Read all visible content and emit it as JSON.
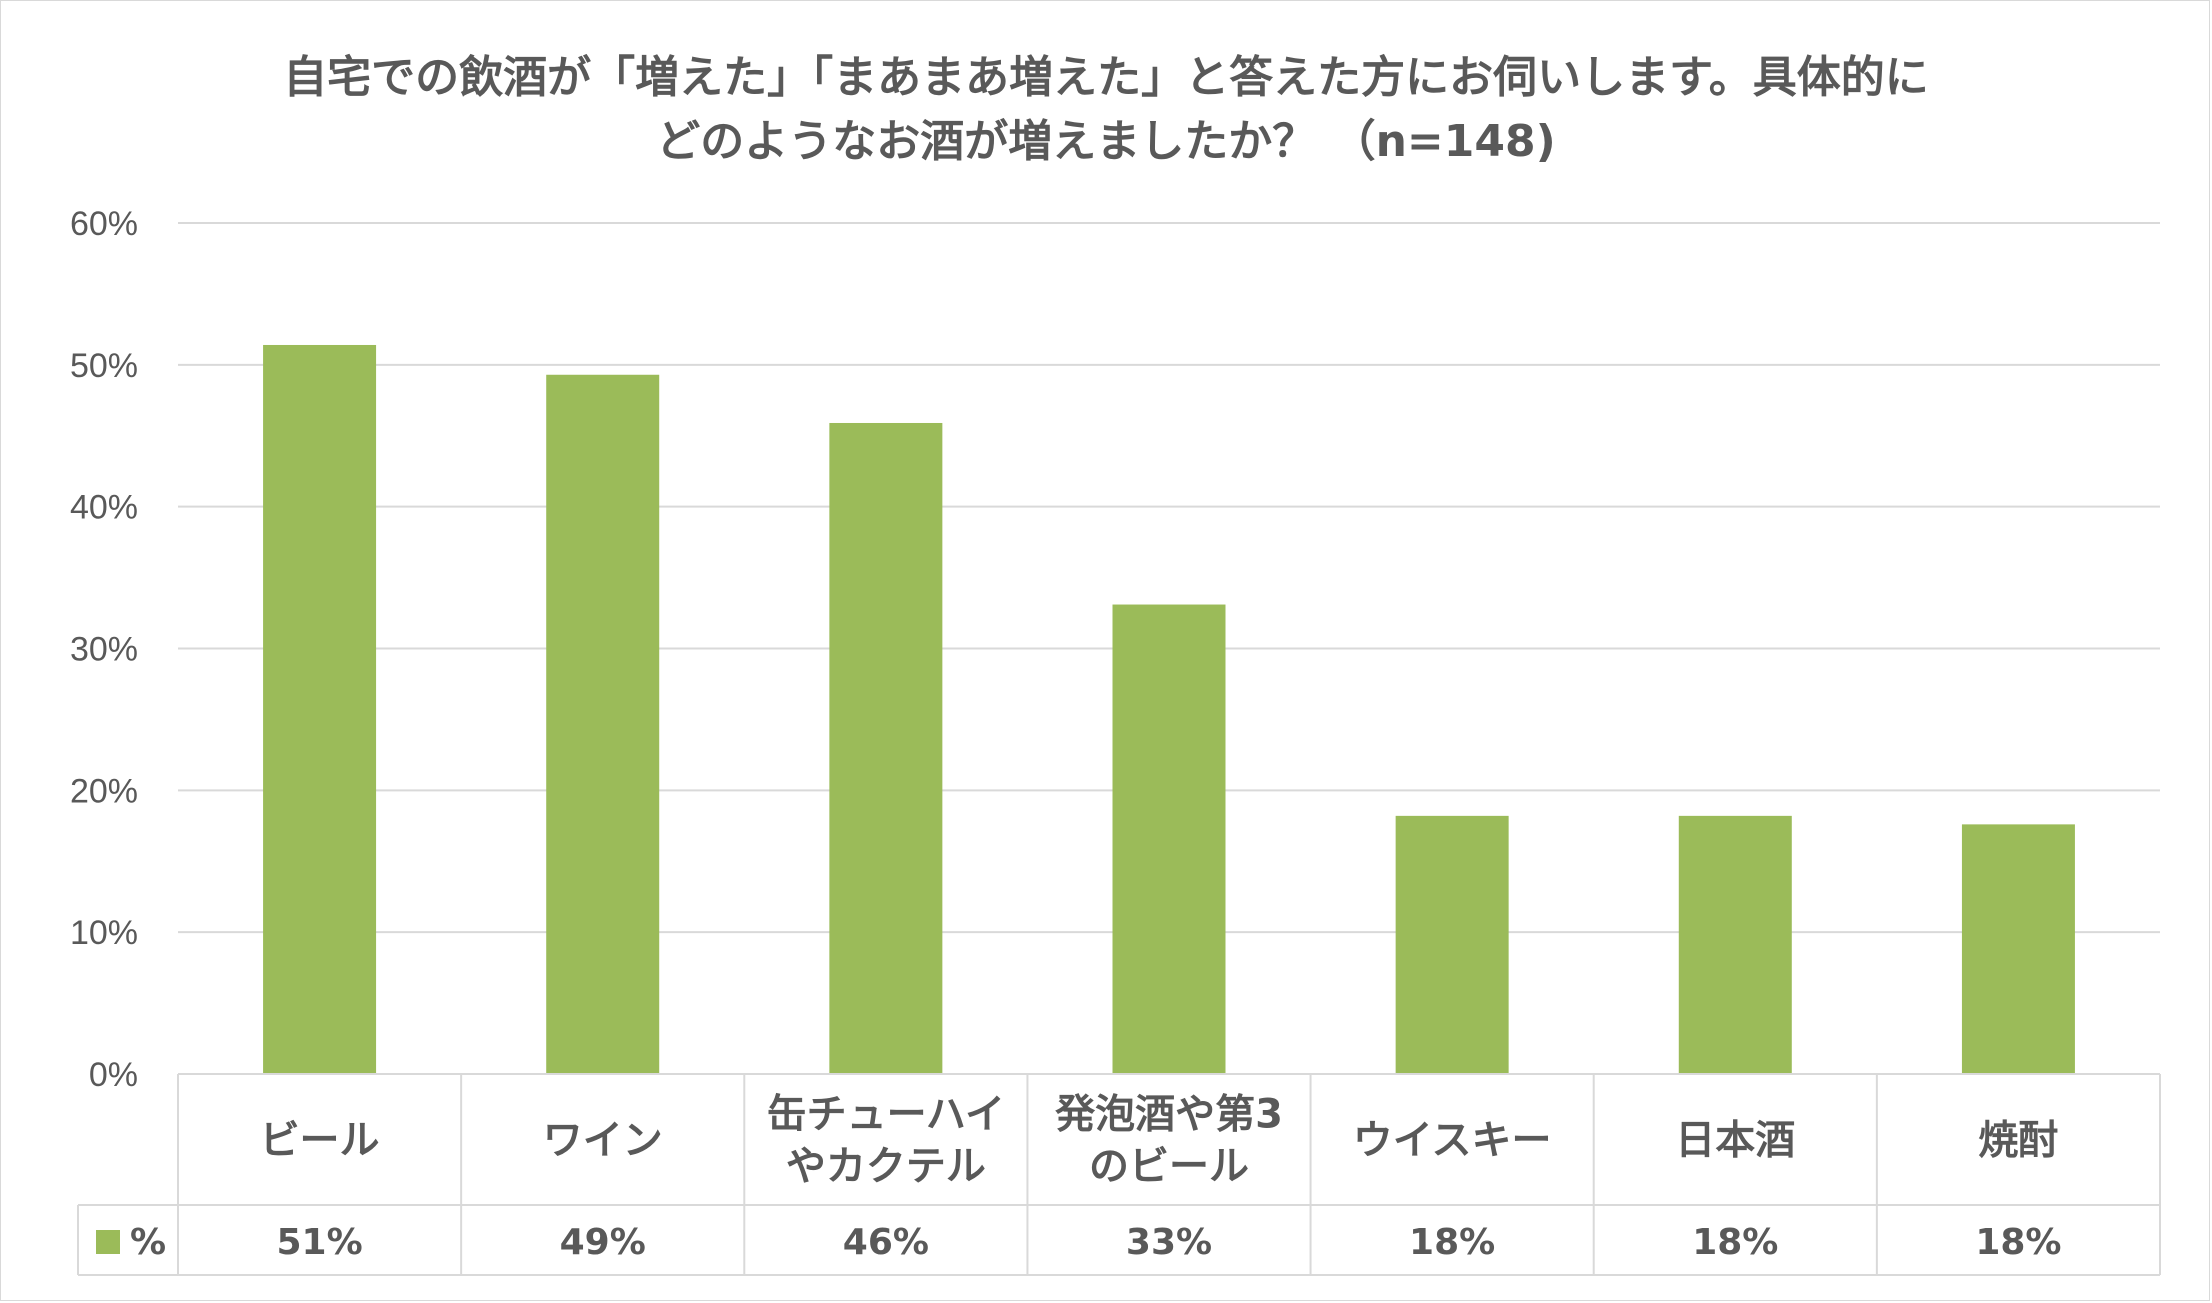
{
  "chart_data": {
    "type": "bar",
    "title": [
      "自宅での飲酒が「増えた」「まあまあ増えた」と答えた方にお伺いします。具体的に",
      "どのようなお酒が増えましたか？ （n=148)"
    ],
    "categories": [
      [
        "ビール"
      ],
      [
        "ワイン"
      ],
      [
        "缶チューハイ",
        "やカクテル"
      ],
      [
        "発泡酒や第3",
        "のビール"
      ],
      [
        "ウイスキー"
      ],
      [
        "日本酒"
      ],
      [
        "焼酎"
      ]
    ],
    "series": [
      {
        "name": "%",
        "values": [
          51.4,
          49.3,
          45.9,
          33.1,
          18.2,
          18.2,
          17.6
        ],
        "labels": [
          "51%",
          "49%",
          "46%",
          "33%",
          "18%",
          "18%",
          "18%"
        ]
      }
    ],
    "yticks": [
      "0%",
      "10%",
      "20%",
      "30%",
      "40%",
      "50%",
      "60%"
    ],
    "ylim": [
      0,
      60
    ],
    "grid": true,
    "legend": "data-table",
    "colors": {
      "bar": "#9bbb59",
      "grid": "#d9d9d9",
      "text": "#595959"
    }
  }
}
